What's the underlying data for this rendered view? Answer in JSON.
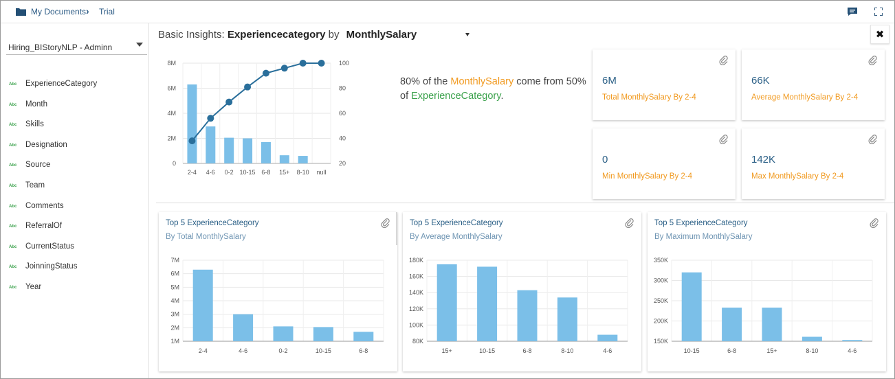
{
  "breadcrumb": {
    "root": "My Documents",
    "current": "Trial"
  },
  "sidebar": {
    "dataset": "Hiring_BIStoryNLP - Adminn",
    "type_tag": "Abc",
    "fields": [
      "ExperienceCategory",
      "Month",
      "Skills",
      "Designation",
      "Source",
      "Team",
      "Comments",
      "ReferralOf",
      "CurrentStatus",
      "JoinningStatus",
      "Year"
    ]
  },
  "header": {
    "prefix": "Basic Insights:",
    "dimension": "Experiencecategory",
    "by": "by",
    "measure": "MonthlySalary"
  },
  "insight": {
    "p1": "80% of the ",
    "measure": "MonthlySalary",
    "p2": " come from 50% of ",
    "dimension": "ExperienceCategory",
    "p3": "."
  },
  "kpis": [
    {
      "value": "6M",
      "label": "Total MonthlySalary By 2-4"
    },
    {
      "value": "66K",
      "label": "Average MonthlySalary By 2-4"
    },
    {
      "value": "0",
      "label": "Min MonthlySalary By 2-4"
    },
    {
      "value": "142K",
      "label": "Max MonthlySalary By 2-4"
    }
  ],
  "colors": {
    "bar": "#7bbfe8",
    "line": "#2a6f9b",
    "accent": "#f19a20",
    "green": "#3aa14b",
    "title": "#2a5f86"
  },
  "chart_data": [
    {
      "type": "bar",
      "title": "",
      "categories": [
        "2-4",
        "4-6",
        "0-2",
        "10-15",
        "6-8",
        "15+",
        "8-10",
        "null"
      ],
      "series": [
        {
          "values": [
            6.3,
            2.95,
            2.05,
            2.0,
            1.7,
            0.65,
            0.6,
            0
          ]
        },
        {
          "type": "line",
          "values": [
            38,
            56,
            69,
            81,
            92,
            96,
            100,
            100
          ]
        }
      ],
      "y_ticks": [
        "0",
        "2M",
        "4M",
        "6M",
        "8M"
      ],
      "y2_ticks": [
        "20",
        "40",
        "60",
        "80",
        "100"
      ],
      "ylim": [
        0,
        8
      ],
      "y2lim": [
        20,
        100
      ],
      "grid": true
    },
    {
      "type": "bar",
      "title": "Top 5 ExperienceCategory",
      "subtitle": "By Total MonthlySalary",
      "categories": [
        "2-4",
        "4-6",
        "0-2",
        "10-15",
        "6-8"
      ],
      "values": [
        6.3,
        3.0,
        2.1,
        2.05,
        1.7
      ],
      "y_ticks": [
        "1M",
        "2M",
        "3M",
        "4M",
        "5M",
        "6M",
        "7M"
      ],
      "ylim": [
        1,
        7
      ],
      "grid": true
    },
    {
      "type": "bar",
      "title": "Top 5 ExperienceCategory",
      "subtitle": "By Average MonthlySalary",
      "categories": [
        "15+",
        "10-15",
        "6-8",
        "8-10",
        "4-6"
      ],
      "values": [
        175,
        172,
        143,
        134,
        88
      ],
      "y_ticks": [
        "80K",
        "100K",
        "120K",
        "140K",
        "160K",
        "180K"
      ],
      "ylim": [
        80,
        180
      ],
      "grid": true
    },
    {
      "type": "bar",
      "title": "Top 5 ExperienceCategory",
      "subtitle": "By Maximum MonthlySalary",
      "categories": [
        "10-15",
        "6-8",
        "15+",
        "8-10",
        "4-6"
      ],
      "values": [
        320,
        233,
        233,
        161,
        153
      ],
      "y_ticks": [
        "150K",
        "200K",
        "250K",
        "300K",
        "350K"
      ],
      "ylim": [
        150,
        350
      ],
      "grid": true
    }
  ]
}
